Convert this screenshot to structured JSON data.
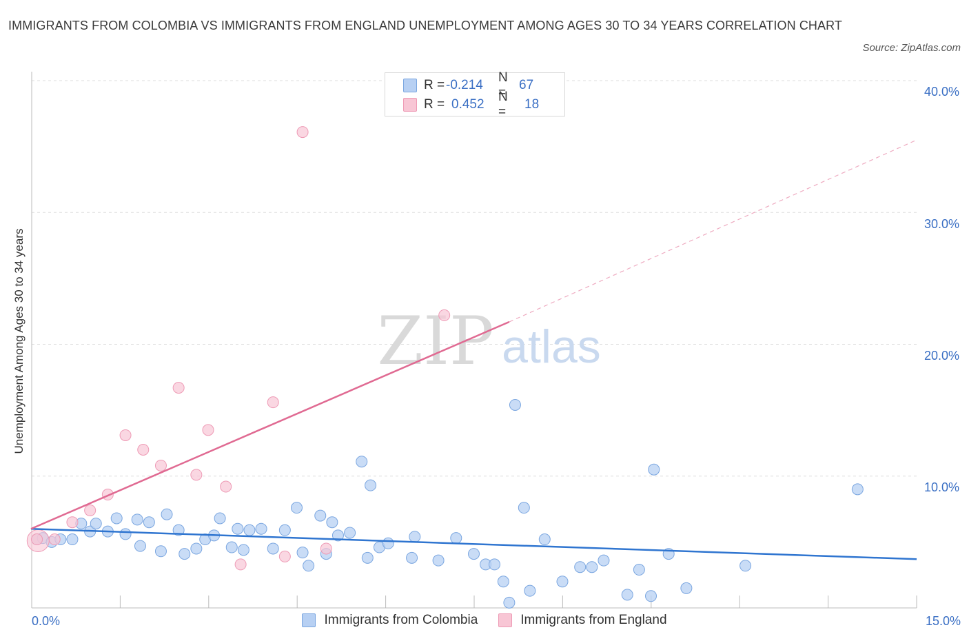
{
  "title": "IMMIGRANTS FROM COLOMBIA VS IMMIGRANTS FROM ENGLAND UNEMPLOYMENT AMONG AGES 30 TO 34 YEARS CORRELATION CHART",
  "source": "Source: ZipAtlas.com",
  "watermark": {
    "zip": "ZIP",
    "atlas": "atlas"
  },
  "legend": {
    "colombia": {
      "r_label": "R =",
      "r_value": "-0.214",
      "n_label": "N =",
      "n_value": "67"
    },
    "england": {
      "r_label": "R =",
      "r_value": "0.452",
      "n_label": "N =",
      "n_value": "18"
    }
  },
  "bottom_legend": {
    "colombia": "Immigrants from Colombia",
    "england": "Immigrants from England"
  },
  "colors": {
    "colombia_fill": "#b7d0f3",
    "colombia_stroke": "#7aa6e0",
    "colombia_line": "#2f75d0",
    "england_fill": "#f8c6d5",
    "england_stroke": "#ee9ab5",
    "england_line": "#e06a92",
    "axis_text": "#3a6fc4",
    "grid": "#dddddd"
  },
  "chart_data": {
    "type": "scatter",
    "title": "IMMIGRANTS FROM COLOMBIA VS IMMIGRANTS FROM ENGLAND UNEMPLOYMENT AMONG AGES 30 TO 34 YEARS CORRELATION CHART",
    "xlabel": "",
    "ylabel": "Unemployment Among Ages 30 to 34 years",
    "xlim": [
      0,
      15
    ],
    "ylim": [
      0,
      40
    ],
    "x_tick_labels": [
      "0.0%",
      "15.0%"
    ],
    "y_ticks": [
      10,
      20,
      30,
      40
    ],
    "y_tick_labels": [
      "10.0%",
      "20.0%",
      "30.0%",
      "40.0%"
    ],
    "grid": true,
    "series": [
      {
        "name": "Immigrants from Colombia",
        "points": [
          [
            0.1,
            5.2
          ],
          [
            0.2,
            5.3
          ],
          [
            0.35,
            5.0
          ],
          [
            0.5,
            5.2
          ],
          [
            0.7,
            5.2
          ],
          [
            0.85,
            6.4
          ],
          [
            1.0,
            5.8
          ],
          [
            1.1,
            6.4
          ],
          [
            1.3,
            5.8
          ],
          [
            1.45,
            6.8
          ],
          [
            1.6,
            5.6
          ],
          [
            1.8,
            6.7
          ],
          [
            1.85,
            4.7
          ],
          [
            2.0,
            6.5
          ],
          [
            2.2,
            4.3
          ],
          [
            2.3,
            7.1
          ],
          [
            2.5,
            5.9
          ],
          [
            2.6,
            4.1
          ],
          [
            2.8,
            4.5
          ],
          [
            2.95,
            5.2
          ],
          [
            3.1,
            5.5
          ],
          [
            3.2,
            6.8
          ],
          [
            3.4,
            4.6
          ],
          [
            3.5,
            6.0
          ],
          [
            3.6,
            4.4
          ],
          [
            3.7,
            5.9
          ],
          [
            3.9,
            6.0
          ],
          [
            4.1,
            4.5
          ],
          [
            4.3,
            5.9
          ],
          [
            4.5,
            7.6
          ],
          [
            4.6,
            4.2
          ],
          [
            4.7,
            3.2
          ],
          [
            4.9,
            7.0
          ],
          [
            5.0,
            4.1
          ],
          [
            5.1,
            6.5
          ],
          [
            5.2,
            5.5
          ],
          [
            5.4,
            5.7
          ],
          [
            5.6,
            11.1
          ],
          [
            5.7,
            3.8
          ],
          [
            5.75,
            9.3
          ],
          [
            5.9,
            4.6
          ],
          [
            6.05,
            4.9
          ],
          [
            6.45,
            3.8
          ],
          [
            6.5,
            5.4
          ],
          [
            6.9,
            3.6
          ],
          [
            7.2,
            5.3
          ],
          [
            7.5,
            4.1
          ],
          [
            7.7,
            3.3
          ],
          [
            7.85,
            3.3
          ],
          [
            8.0,
            2.0
          ],
          [
            8.1,
            0.4
          ],
          [
            8.2,
            15.4
          ],
          [
            8.35,
            7.6
          ],
          [
            8.45,
            1.3
          ],
          [
            8.7,
            5.2
          ],
          [
            9.0,
            2.0
          ],
          [
            9.3,
            3.1
          ],
          [
            9.5,
            3.1
          ],
          [
            9.7,
            3.6
          ],
          [
            10.1,
            1.0
          ],
          [
            10.3,
            2.9
          ],
          [
            10.5,
            0.9
          ],
          [
            10.55,
            10.5
          ],
          [
            10.8,
            4.1
          ],
          [
            11.1,
            1.5
          ],
          [
            12.1,
            3.2
          ],
          [
            14.0,
            9.0
          ]
        ],
        "trend": {
          "x0": 0,
          "y0": 6.0,
          "x1": 15,
          "y1": 3.7
        }
      },
      {
        "name": "Immigrants from England",
        "points": [
          [
            0.1,
            5.2
          ],
          [
            0.4,
            5.2
          ],
          [
            0.7,
            6.5
          ],
          [
            1.0,
            7.4
          ],
          [
            1.3,
            8.6
          ],
          [
            1.6,
            13.1
          ],
          [
            1.9,
            12.0
          ],
          [
            2.2,
            10.8
          ],
          [
            2.5,
            16.7
          ],
          [
            2.8,
            10.1
          ],
          [
            3.0,
            13.5
          ],
          [
            3.3,
            9.2
          ],
          [
            3.55,
            3.3
          ],
          [
            4.1,
            15.6
          ],
          [
            4.3,
            3.9
          ],
          [
            4.6,
            36.1
          ],
          [
            5.0,
            4.5
          ],
          [
            7.0,
            22.2
          ]
        ],
        "trend": {
          "x0": 0,
          "y0": 6.0,
          "x1": 8.1,
          "y1": 21.7,
          "dashed_to_x": 15,
          "dashed_to_y": 35.5
        }
      }
    ]
  }
}
